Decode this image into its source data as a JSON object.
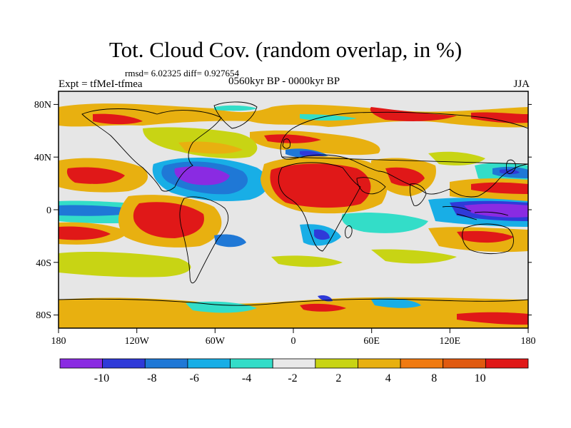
{
  "title": "Tot. Cloud Cov. (random overlap, in %)",
  "stats": "rmsd= 6.02325 diff= 0.927654",
  "experiment": "Expt = tfMeI-tfmea",
  "period": "0560kyr BP - 0000kyr BP",
  "season": "JJA",
  "map": {
    "projection": "cylindrical equidistant",
    "lon_range": [
      -180,
      180
    ],
    "lat_range": [
      -90,
      90
    ],
    "lon_ticks": [
      "180",
      "120W",
      "60W",
      "0",
      "60E",
      "120E",
      "180"
    ],
    "lat_ticks": [
      "80N",
      "40N",
      "0",
      "40S",
      "80S"
    ],
    "fill_background": "#e6e6e6"
  },
  "colorbar": {
    "labels": [
      "-10",
      "-8",
      "-6",
      "-4",
      "-2",
      "2",
      "4",
      "8",
      "10"
    ],
    "colors": [
      "#8a2be2",
      "#2f3ad8",
      "#1f78d6",
      "#18aee6",
      "#33ddc8",
      "#e8e8e8",
      "#c8d414",
      "#e8b010",
      "#f07a10",
      "#e05a10",
      "#e01818"
    ]
  }
}
